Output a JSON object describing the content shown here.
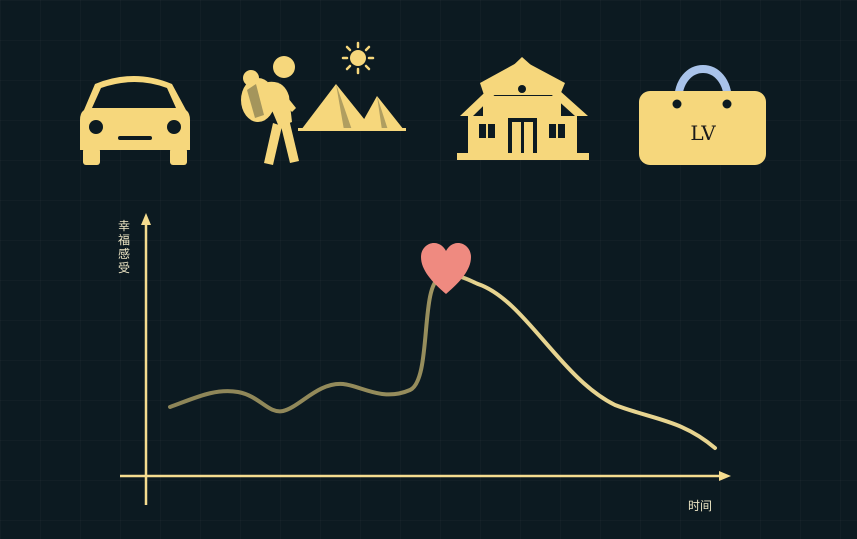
{
  "diagram": {
    "y_axis_label": "幸福感受",
    "x_axis_label": "时间",
    "icons": [
      "car-icon",
      "hiker-icon",
      "pyramids-icon",
      "house-icon",
      "handbag-icon",
      "heart-icon"
    ],
    "bag_label": "LV",
    "colors": {
      "background": "#0c1a21",
      "icon": "#f6d77c",
      "axis": "#f5dc8f",
      "curve_early": "#8d8558",
      "curve_late": "#e7d490",
      "heart": "#ef8a80",
      "bag_handle": "#a9c3ea"
    }
  }
}
